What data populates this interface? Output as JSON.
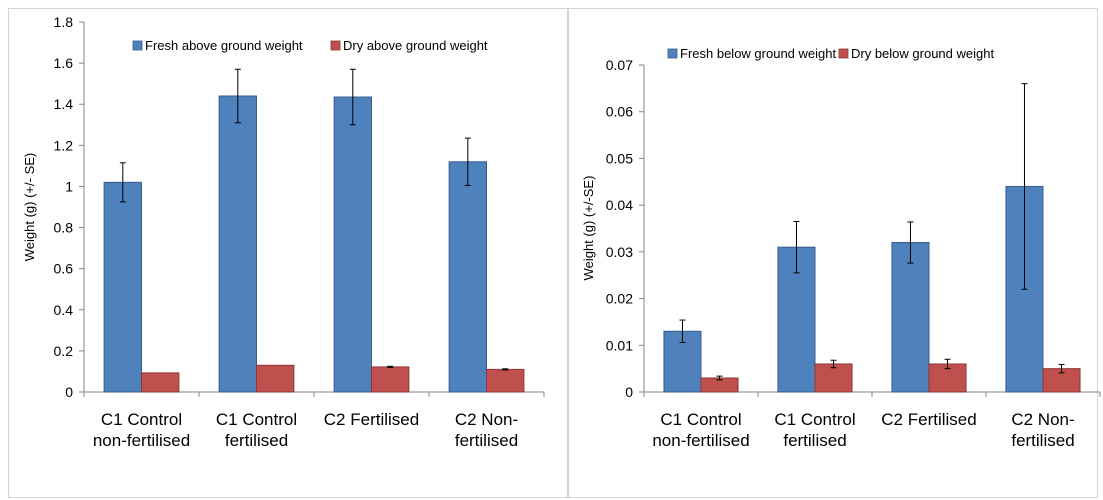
{
  "chart_data": [
    {
      "type": "bar",
      "title": "",
      "xlabel": "",
      "ylabel": "Weight (g) (+/- SE)",
      "ylim": [
        0,
        1.8
      ],
      "ytick_step": 0.2,
      "ytick_labels": [
        "0",
        "0.2",
        "0.4",
        "0.6",
        "0.8",
        "1",
        "1.2",
        "1.4",
        "1.6",
        "1.8"
      ],
      "grid": false,
      "legend_position": "top",
      "categories": [
        [
          "C1 Control",
          "non-fertilised"
        ],
        [
          "C1 Control",
          "fertilised"
        ],
        [
          "C2 Fertilised"
        ],
        [
          "C2 Non-",
          "fertilised"
        ]
      ],
      "series": [
        {
          "name": "Fresh above ground weight",
          "color": "#4f81bd",
          "values": [
            1.02,
            1.44,
            1.435,
            1.12
          ],
          "errors": [
            0.095,
            0.13,
            0.135,
            0.115
          ]
        },
        {
          "name": "Dry above ground weight",
          "color": "#c0504d",
          "values": [
            0.093,
            0.13,
            0.122,
            0.11
          ],
          "errors": [
            0.0,
            0.0,
            0.003,
            0.003
          ]
        }
      ]
    },
    {
      "type": "bar",
      "title": "",
      "xlabel": "",
      "ylabel": "Weight (g) (+/-SE)",
      "ylim": [
        0,
        0.07
      ],
      "ytick_step": 0.01,
      "ytick_labels": [
        "0",
        "0.01",
        "0.02",
        "0.03",
        "0.04",
        "0.05",
        "0.06",
        "0.07"
      ],
      "grid": false,
      "legend_position": "top",
      "categories": [
        [
          "C1 Control",
          "non-fertilised"
        ],
        [
          "C1 Control",
          "fertilised"
        ],
        [
          "C2 Fertilised"
        ],
        [
          "C2 Non-",
          "fertilised"
        ]
      ],
      "series": [
        {
          "name": "Fresh below ground weight",
          "color": "#4f81bd",
          "values": [
            0.013,
            0.031,
            0.032,
            0.044
          ],
          "errors": [
            0.0024,
            0.0055,
            0.0044,
            0.022
          ]
        },
        {
          "name": "Dry below ground weight",
          "color": "#c0504d",
          "values": [
            0.003,
            0.006,
            0.006,
            0.005
          ],
          "errors": [
            0.0004,
            0.0008,
            0.001,
            0.0009
          ]
        }
      ]
    }
  ]
}
